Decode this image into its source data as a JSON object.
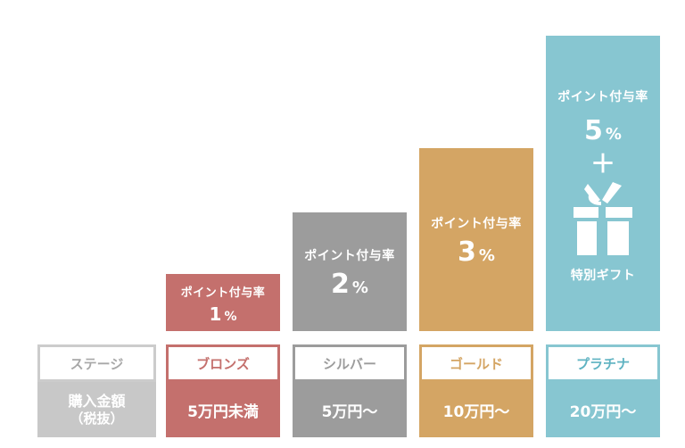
{
  "rate_label": "ポイント付与率",
  "percent_unit": "%",
  "header": {
    "stage": "ステージ",
    "amount_line1": "購入金額",
    "amount_line2": "（税抜）"
  },
  "tiers": [
    {
      "stage": "ブロンズ",
      "rate": "1",
      "amount": "5万円未満",
      "color": "#c4706d"
    },
    {
      "stage": "シルバー",
      "rate": "2",
      "amount": "5万円〜",
      "color": "#9c9c9c"
    },
    {
      "stage": "ゴールド",
      "rate": "3",
      "amount": "10万円〜",
      "color": "#d4a564"
    },
    {
      "stage": "プラチナ",
      "rate": "5",
      "amount": "20万円〜",
      "color": "#87c6d1",
      "plus": "＋",
      "gift_label": "特別ギフト"
    }
  ],
  "colors": {
    "header_border": "#cccccc",
    "header_fill": "#c8c8c8",
    "header_text": "#a8a8a8"
  }
}
